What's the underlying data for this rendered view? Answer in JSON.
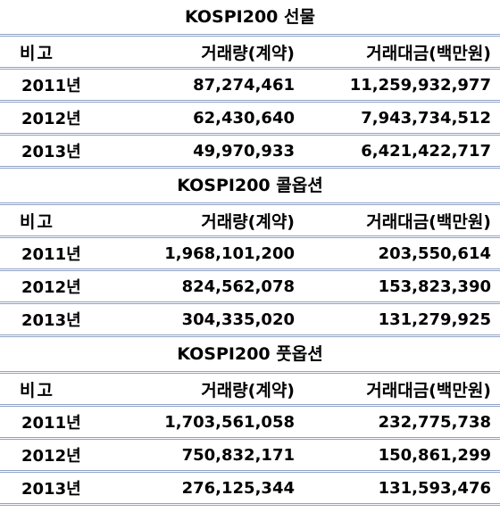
{
  "sections": [
    {
      "title": "KOSPI200 선물",
      "headers": [
        "비고",
        "거래량(계약)",
        "거래대금(백만원)"
      ],
      "rows": [
        [
          "2011년",
          "87,274,461",
          "11,259,932,977"
        ],
        [
          "2012년",
          "62,430,640",
          "7,943,734,512"
        ],
        [
          "2013년",
          "49,970,933",
          "6,421,422,717"
        ]
      ]
    },
    {
      "title": "KOSPI200 콜옵션",
      "headers": [
        "비고",
        "거래량(계약)",
        "거래대금(백만원)"
      ],
      "rows": [
        [
          "2011년",
          "1,968,101,200",
          "203,550,614"
        ],
        [
          "2012년",
          "824,562,078",
          "153,823,390"
        ],
        [
          "2013년",
          "304,335,020",
          "131,279,925"
        ]
      ]
    },
    {
      "title": "KOSPI200 풋옵션",
      "headers": [
        "비고",
        "거래량(계약)",
        "거래대금(백만원)"
      ],
      "rows": [
        [
          "2011년",
          "1,703,561,058",
          "232,775,738"
        ],
        [
          "2012년",
          "750,832,171",
          "150,861,299"
        ],
        [
          "2013년",
          "276,125,344",
          "131,593,476"
        ]
      ]
    }
  ]
}
